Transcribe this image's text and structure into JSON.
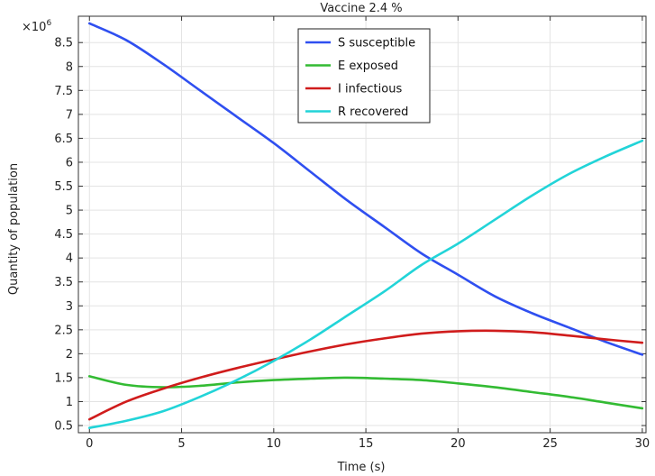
{
  "chart_data": {
    "type": "line",
    "title": "Vaccine 2.4 %",
    "xlabel": "Time (s)",
    "ylabel": "Quantity of  population",
    "y_multiplier_label": "×10",
    "y_multiplier_exp": "6",
    "xlim": [
      -0.6,
      30.2
    ],
    "ylim": [
      0.35,
      9.05
    ],
    "grid": true,
    "legend_position": "top-center",
    "x_ticks": [
      0,
      5,
      10,
      15,
      20,
      25,
      30
    ],
    "x_tick_labels": [
      "0",
      "5",
      "10",
      "15",
      "20",
      "25",
      "30"
    ],
    "y_ticks": [
      0.5,
      1,
      1.5,
      2,
      2.5,
      3,
      3.5,
      4,
      4.5,
      5,
      5.5,
      6,
      6.5,
      7,
      7.5,
      8,
      8.5
    ],
    "y_tick_labels": [
      "0.5",
      "1",
      "1.5",
      "2",
      "2.5",
      "3",
      "3.5",
      "4",
      "4.5",
      "5",
      "5.5",
      "6",
      "6.5",
      "7",
      "7.5",
      "8",
      "8.5"
    ],
    "x": [
      0,
      2,
      4,
      6,
      8,
      10,
      12,
      14,
      16,
      18,
      20,
      22,
      24,
      26,
      28,
      30
    ],
    "series": [
      {
        "name": "S susceptible",
        "color": "#2f4ff0",
        "values": [
          8.9,
          8.55,
          8.05,
          7.5,
          6.95,
          6.4,
          5.8,
          5.2,
          4.65,
          4.1,
          3.65,
          3.2,
          2.85,
          2.55,
          2.25,
          1.98
        ]
      },
      {
        "name": "E exposed",
        "color": "#33bb33",
        "values": [
          1.53,
          1.35,
          1.3,
          1.33,
          1.4,
          1.45,
          1.48,
          1.5,
          1.48,
          1.45,
          1.38,
          1.3,
          1.2,
          1.1,
          0.98,
          0.86
        ]
      },
      {
        "name": "I infectious",
        "color": "#d01c1c",
        "values": [
          0.63,
          1.0,
          1.27,
          1.5,
          1.7,
          1.88,
          2.05,
          2.2,
          2.32,
          2.42,
          2.47,
          2.48,
          2.45,
          2.38,
          2.3,
          2.23
        ]
      },
      {
        "name": "R recovered",
        "color": "#22d4d8",
        "values": [
          0.45,
          0.6,
          0.8,
          1.1,
          1.45,
          1.85,
          2.3,
          2.8,
          3.3,
          3.85,
          4.3,
          4.8,
          5.3,
          5.75,
          6.12,
          6.45
        ]
      }
    ]
  }
}
